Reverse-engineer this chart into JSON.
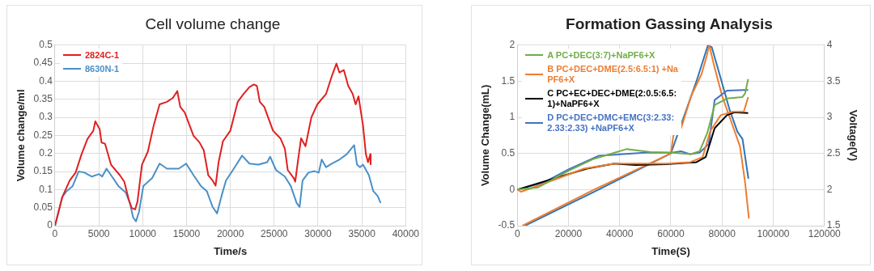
{
  "chart_data": [
    {
      "type": "line",
      "title": "Cell volume change",
      "xlabel": "Time/s",
      "ylabel": "Volume change/ml",
      "xlim": [
        0,
        40000
      ],
      "xticks": [
        0,
        5000,
        10000,
        15000,
        20000,
        25000,
        30000,
        35000,
        40000
      ],
      "ylim": [
        0,
        0.5
      ],
      "yticks": [
        0,
        0.05,
        0.1,
        0.15,
        0.2,
        0.25,
        0.3,
        0.35,
        0.4,
        0.45,
        0.5
      ],
      "grid": true,
      "legend": "top left",
      "marker": "none",
      "series": [
        {
          "name": "2824C-1",
          "color": "#e02020",
          "x": [
            0,
            840,
            1680,
            2350,
            3030,
            3700,
            4370,
            4600,
            5100,
            5310,
            5710,
            6390,
            7390,
            7900,
            8400,
            8740,
            9140,
            9410,
            9920,
            10590,
            11260,
            11930,
            12770,
            13450,
            13950,
            14290,
            14790,
            15800,
            16470,
            16970,
            17480,
            17980,
            18320,
            18660,
            19160,
            20000,
            20840,
            21510,
            22180,
            22690,
            23030,
            23360,
            23870,
            24870,
            25710,
            26220,
            26550,
            27230,
            27400,
            27730,
            28070,
            28570,
            29240,
            29920,
            30920,
            31600,
            32100,
            32440,
            32940,
            33450,
            33950,
            34290,
            34620,
            35130,
            35460,
            35700,
            35970,
            36000
          ],
          "values": [
            0,
            0.08,
            0.125,
            0.147,
            0.198,
            0.24,
            0.263,
            0.289,
            0.267,
            0.23,
            0.227,
            0.169,
            0.14,
            0.122,
            0.074,
            0.049,
            0.045,
            0.067,
            0.169,
            0.205,
            0.278,
            0.336,
            0.343,
            0.354,
            0.373,
            0.329,
            0.314,
            0.249,
            0.231,
            0.209,
            0.14,
            0.125,
            0.111,
            0.176,
            0.234,
            0.263,
            0.343,
            0.365,
            0.384,
            0.391,
            0.387,
            0.343,
            0.329,
            0.263,
            0.242,
            0.213,
            0.154,
            0.132,
            0.122,
            0.183,
            0.242,
            0.22,
            0.3,
            0.336,
            0.365,
            0.416,
            0.449,
            0.424,
            0.431,
            0.387,
            0.365,
            0.336,
            0.358,
            0.278,
            0.198,
            0.176,
            0.198,
            0.17
          ]
        },
        {
          "name": "8630N-1",
          "color": "#4a90c8",
          "x": [
            0,
            840,
            1340,
            2020,
            2690,
            3360,
            4200,
            5040,
            5380,
            5880,
            6390,
            7230,
            8070,
            8570,
            8910,
            9240,
            9580,
            10080,
            11090,
            11930,
            12770,
            14120,
            14960,
            15800,
            16640,
            17310,
            17980,
            18490,
            18990,
            19500,
            20500,
            21340,
            22180,
            23190,
            24200,
            24540,
            25210,
            26220,
            26890,
            27560,
            27900,
            28240,
            28910,
            29580,
            30080,
            30420,
            30920,
            31600,
            32440,
            33280,
            34120,
            34450,
            34790,
            35130,
            35800,
            36300,
            36810,
            37140
          ],
          "values": [
            0,
            0.08,
            0.096,
            0.11,
            0.15,
            0.147,
            0.136,
            0.143,
            0.136,
            0.158,
            0.14,
            0.11,
            0.092,
            0.06,
            0.023,
            0.012,
            0.038,
            0.11,
            0.132,
            0.172,
            0.158,
            0.158,
            0.172,
            0.14,
            0.11,
            0.096,
            0.052,
            0.034,
            0.082,
            0.125,
            0.162,
            0.194,
            0.172,
            0.169,
            0.176,
            0.191,
            0.154,
            0.136,
            0.11,
            0.063,
            0.052,
            0.125,
            0.147,
            0.151,
            0.147,
            0.183,
            0.162,
            0.172,
            0.183,
            0.198,
            0.223,
            0.169,
            0.162,
            0.169,
            0.14,
            0.096,
            0.082,
            0.063
          ]
        }
      ]
    },
    {
      "type": "line",
      "title": "Formation Gassing Analysis",
      "xlabel": "Time(S)",
      "ylabel": "Volume Change(mL)",
      "y2label": "Voltage(V)",
      "xlim": [
        0,
        120000
      ],
      "xticks": [
        0,
        20000,
        40000,
        60000,
        80000,
        100000,
        120000
      ],
      "ylim": [
        -0.5,
        2
      ],
      "yticks": [
        -0.5,
        0,
        0.5,
        1,
        1.5,
        2
      ],
      "y2lim": [
        1.5,
        4
      ],
      "y2ticks": [
        1.5,
        2,
        2.5,
        3,
        3.5,
        4
      ],
      "grid": true,
      "legend": "top left",
      "marker": "none",
      "series": [
        {
          "name": "A PC+DEC(3:7)+NaPF6+X",
          "color": "#70ad47",
          "x": [
            0,
            8100,
            20000,
            29500,
            42600,
            52100,
            60500,
            67600,
            71200,
            74200,
            77100,
            81900,
            87900,
            89000,
            90200
          ],
          "values": [
            0,
            0.03,
            0.26,
            0.42,
            0.56,
            0.52,
            0.51,
            0.49,
            0.53,
            0.78,
            1.17,
            1.26,
            1.28,
            1.33,
            1.53
          ]
        },
        {
          "name": "B PC+DEC+DME(2.5:6.5:1) +NaPF6+X",
          "color": "#ed7d31",
          "x": [
            0,
            1500,
            14000,
            26000,
            37900,
            58100,
            67600,
            72400,
            75400,
            79500,
            84300,
            88500,
            90200
          ],
          "values": [
            0,
            -0.03,
            0.13,
            0.29,
            0.36,
            0.36,
            0.38,
            0.45,
            0.81,
            1.03,
            1.08,
            1.08,
            1.28
          ]
        },
        {
          "name": "C PC+EC+DEC+DME(2:0.5:6.5:1)+NaPF6+X",
          "color": "#000000",
          "x": [
            0,
            14000,
            27100,
            37900,
            46200,
            58100,
            70000,
            73600,
            77100,
            81900,
            84900,
            90200
          ],
          "values": [
            0,
            0.15,
            0.29,
            0.36,
            0.34,
            0.35,
            0.38,
            0.45,
            0.85,
            1.03,
            1.07,
            1.06
          ]
        },
        {
          "name": "D PC+DEC+DMC+EMC(3:2.33:2.33:2.33) +NaPF6+X",
          "color": "#4472c4",
          "x": [
            0,
            10500,
            20000,
            31900,
            49800,
            60500,
            64000,
            67600,
            71200,
            74800,
            77100,
            81900,
            89000,
            90200
          ],
          "values": [
            0,
            0.1,
            0.28,
            0.47,
            0.51,
            0.51,
            0.53,
            0.49,
            0.51,
            0.63,
            1.24,
            1.37,
            1.38,
            1.38
          ]
        },
        {
          "color": "#ed7d31",
          "axis": "y2",
          "x": [
            2000,
            30000,
            60000,
            61000,
            64000,
            68000,
            72000,
            74000,
            75000,
            77000,
            80000,
            84000,
            87000,
            89000,
            90500
          ],
          "values": [
            1.5,
            2.0,
            2.5,
            2.75,
            2.85,
            3.3,
            3.6,
            3.85,
            4.0,
            3.7,
            3.3,
            2.9,
            2.6,
            2.1,
            1.6
          ]
        },
        {
          "color": "#2e75b6",
          "axis": "y2",
          "x": [
            3000,
            30000,
            60000,
            62000,
            64000,
            70000,
            74500,
            76000,
            79000,
            83000,
            86000,
            88000,
            90300
          ],
          "values": [
            1.5,
            1.97,
            2.5,
            2.7,
            2.9,
            3.5,
            4.0,
            3.97,
            3.6,
            3.1,
            2.8,
            2.7,
            2.15
          ]
        }
      ]
    }
  ]
}
